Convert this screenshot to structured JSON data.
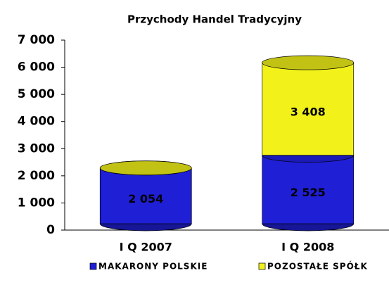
{
  "chart_data": {
    "type": "bar",
    "stacked": true,
    "title": "Przychody Handel Tradycyjny",
    "categories": [
      "I Q 2007",
      "I Q 2008"
    ],
    "series": [
      {
        "name": "MAKARONY POLSKIE",
        "color": "#1f1fd6",
        "values": [
          2054,
          2525
        ],
        "value_labels": [
          "2 054",
          "2 525"
        ]
      },
      {
        "name": "POZOSTAŁE SPÓŁK",
        "color": "#f2f21a",
        "values": [
          0,
          3408
        ],
        "value_labels": [
          null,
          "3 408"
        ]
      }
    ],
    "ylim": [
      0,
      7000
    ],
    "yticks": [
      0,
      {
        "value": 1000,
        "label": "1 000"
      },
      {
        "value": 2000,
        "label": "2 000"
      },
      {
        "value": 3000,
        "label": "3 000"
      },
      {
        "value": 4000,
        "label": "4 000"
      },
      {
        "value": 5000,
        "label": "5 000"
      },
      {
        "value": 6000,
        "label": "6 000"
      },
      {
        "value": 7000,
        "label": "7 000"
      }
    ],
    "legend": "bottom",
    "grid": false
  }
}
